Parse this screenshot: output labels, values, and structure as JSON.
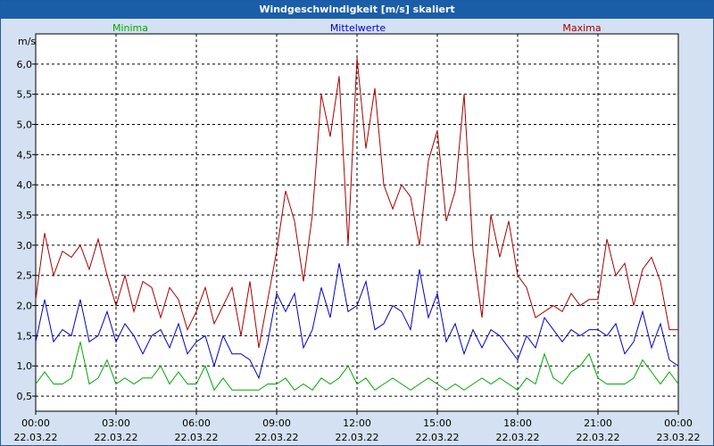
{
  "window": {
    "title": "Windgeschwindigkeit [m/s] skaliert"
  },
  "chart_data": {
    "type": "line",
    "title": "Windgeschwindigkeit [m/s] skaliert",
    "ylabel": "m/s",
    "ylim": [
      0.25,
      6.5
    ],
    "xlim_hours": [
      0,
      24
    ],
    "grid": true,
    "legend_placement": "top",
    "y_ticks": [
      "0,5",
      "1,0",
      "1,5",
      "2,0",
      "2,5",
      "3,0",
      "3,5",
      "4,0",
      "4,5",
      "5,0",
      "5,5",
      "6,0"
    ],
    "y_tick_values": [
      0.5,
      1.0,
      1.5,
      2.0,
      2.5,
      3.0,
      3.5,
      4.0,
      4.5,
      5.0,
      5.5,
      6.0
    ],
    "x_ticks": [
      {
        "time": "00:00",
        "date": "22.03.22",
        "hour": 0
      },
      {
        "time": "03:00",
        "date": "22.03.22",
        "hour": 3
      },
      {
        "time": "06:00",
        "date": "22.03.22",
        "hour": 6
      },
      {
        "time": "09:00",
        "date": "22.03.22",
        "hour": 9
      },
      {
        "time": "12:00",
        "date": "22.03.22",
        "hour": 12
      },
      {
        "time": "15:00",
        "date": "22.03.22",
        "hour": 15
      },
      {
        "time": "18:00",
        "date": "22.03.22",
        "hour": 18
      },
      {
        "time": "21:00",
        "date": "22.03.22",
        "hour": 21
      },
      {
        "time": "00:00",
        "date": "23.03.22",
        "hour": 24
      }
    ],
    "colors": {
      "plot_bg": "#ffffff",
      "minima": "#00aa00",
      "mittel": "#0000cc",
      "maxima": "#aa0000",
      "grid": "#000000"
    },
    "series": [
      {
        "name": "Minima",
        "color": "#00aa00",
        "x": [
          0,
          0.333,
          0.667,
          1,
          1.333,
          1.667,
          2,
          2.333,
          2.667,
          3,
          3.333,
          3.667,
          4,
          4.333,
          4.667,
          5,
          5.333,
          5.667,
          6,
          6.333,
          6.667,
          7,
          7.333,
          7.667,
          8,
          8.333,
          8.667,
          9,
          9.333,
          9.667,
          10,
          10.333,
          10.667,
          11,
          11.333,
          11.667,
          12,
          12.333,
          12.667,
          13,
          13.333,
          13.667,
          14,
          14.333,
          14.667,
          15,
          15.333,
          15.667,
          16,
          16.333,
          16.667,
          17,
          17.333,
          17.667,
          18,
          18.333,
          18.667,
          19,
          19.333,
          19.667,
          20,
          20.333,
          20.667,
          21,
          21.333,
          21.667,
          22,
          22.333,
          22.667,
          23,
          23.333,
          23.667,
          24
        ],
        "values": [
          0.7,
          0.9,
          0.7,
          0.7,
          0.8,
          1.4,
          0.7,
          0.8,
          1.1,
          0.7,
          0.8,
          0.7,
          0.8,
          0.8,
          1.0,
          0.7,
          0.9,
          0.7,
          0.7,
          1.0,
          0.6,
          0.8,
          0.6,
          0.6,
          0.6,
          0.6,
          0.7,
          0.7,
          0.8,
          0.6,
          0.7,
          0.6,
          0.8,
          0.7,
          0.8,
          1.0,
          0.7,
          0.8,
          0.6,
          0.7,
          0.8,
          0.7,
          0.6,
          0.7,
          0.8,
          0.7,
          0.6,
          0.7,
          0.6,
          0.7,
          0.8,
          0.7,
          0.8,
          0.7,
          0.6,
          0.8,
          0.7,
          1.2,
          0.8,
          0.7,
          0.9,
          1.0,
          1.2,
          0.8,
          0.7,
          0.7,
          0.7,
          0.8,
          1.1,
          0.9,
          0.7,
          0.9,
          0.7
        ]
      },
      {
        "name": "Mittelwerte",
        "color": "#0000cc",
        "x": [
          0,
          0.333,
          0.667,
          1,
          1.333,
          1.667,
          2,
          2.333,
          2.667,
          3,
          3.333,
          3.667,
          4,
          4.333,
          4.667,
          5,
          5.333,
          5.667,
          6,
          6.333,
          6.667,
          7,
          7.333,
          7.667,
          8,
          8.333,
          8.667,
          9,
          9.333,
          9.667,
          10,
          10.333,
          10.667,
          11,
          11.333,
          11.667,
          12,
          12.333,
          12.667,
          13,
          13.333,
          13.667,
          14,
          14.333,
          14.667,
          15,
          15.333,
          15.667,
          16,
          16.333,
          16.667,
          17,
          17.333,
          17.667,
          18,
          18.333,
          18.667,
          19,
          19.333,
          19.667,
          20,
          20.333,
          20.667,
          21,
          21.333,
          21.667,
          22,
          22.333,
          22.667,
          23,
          23.333,
          23.667,
          24
        ],
        "values": [
          1.4,
          2.1,
          1.4,
          1.6,
          1.5,
          2.1,
          1.4,
          1.5,
          1.9,
          1.4,
          1.7,
          1.5,
          1.2,
          1.5,
          1.6,
          1.3,
          1.7,
          1.2,
          1.4,
          1.5,
          1.0,
          1.5,
          1.2,
          1.2,
          1.1,
          0.8,
          1.4,
          2.2,
          1.9,
          2.2,
          1.3,
          1.6,
          2.3,
          1.8,
          2.7,
          1.9,
          2.0,
          2.4,
          1.6,
          1.7,
          2.0,
          1.9,
          1.6,
          2.6,
          1.8,
          2.2,
          1.4,
          1.7,
          1.2,
          1.6,
          1.3,
          1.6,
          1.5,
          1.3,
          1.1,
          1.5,
          1.3,
          1.8,
          1.6,
          1.4,
          1.6,
          1.5,
          1.6,
          1.6,
          1.5,
          1.7,
          1.2,
          1.4,
          1.9,
          1.3,
          1.7,
          1.1,
          1.0
        ]
      },
      {
        "name": "Maxima",
        "color": "#aa0000",
        "x": [
          0,
          0.333,
          0.667,
          1,
          1.333,
          1.667,
          2,
          2.333,
          2.667,
          3,
          3.333,
          3.667,
          4,
          4.333,
          4.667,
          5,
          5.333,
          5.667,
          6,
          6.333,
          6.667,
          7,
          7.333,
          7.667,
          8,
          8.333,
          8.667,
          9,
          9.333,
          9.667,
          10,
          10.333,
          10.667,
          11,
          11.333,
          11.667,
          12,
          12.333,
          12.667,
          13,
          13.333,
          13.667,
          14,
          14.333,
          14.667,
          15,
          15.333,
          15.667,
          16,
          16.333,
          16.667,
          17,
          17.333,
          17.667,
          18,
          18.333,
          18.667,
          19,
          19.333,
          19.667,
          20,
          20.333,
          20.667,
          21,
          21.333,
          21.667,
          22,
          22.333,
          22.667,
          23,
          23.333,
          23.667,
          24
        ],
        "values": [
          2.1,
          3.2,
          2.5,
          2.9,
          2.8,
          3.0,
          2.6,
          3.1,
          2.5,
          2.0,
          2.5,
          1.9,
          2.4,
          2.3,
          1.8,
          2.3,
          2.1,
          1.6,
          1.9,
          2.3,
          1.7,
          2.0,
          2.3,
          1.5,
          2.4,
          1.3,
          2.1,
          2.9,
          3.9,
          3.4,
          2.4,
          3.5,
          5.5,
          4.8,
          5.8,
          3.0,
          6.1,
          4.6,
          5.6,
          4.0,
          3.6,
          4.0,
          3.8,
          3.0,
          4.4,
          4.9,
          3.4,
          3.9,
          5.5,
          2.9,
          1.8,
          3.5,
          2.8,
          3.4,
          2.5,
          2.3,
          1.8,
          1.9,
          2.0,
          1.9,
          2.2,
          2.0,
          2.1,
          2.1,
          3.1,
          2.5,
          2.7,
          2.0,
          2.6,
          2.8,
          2.4,
          1.6,
          1.6
        ]
      }
    ]
  }
}
